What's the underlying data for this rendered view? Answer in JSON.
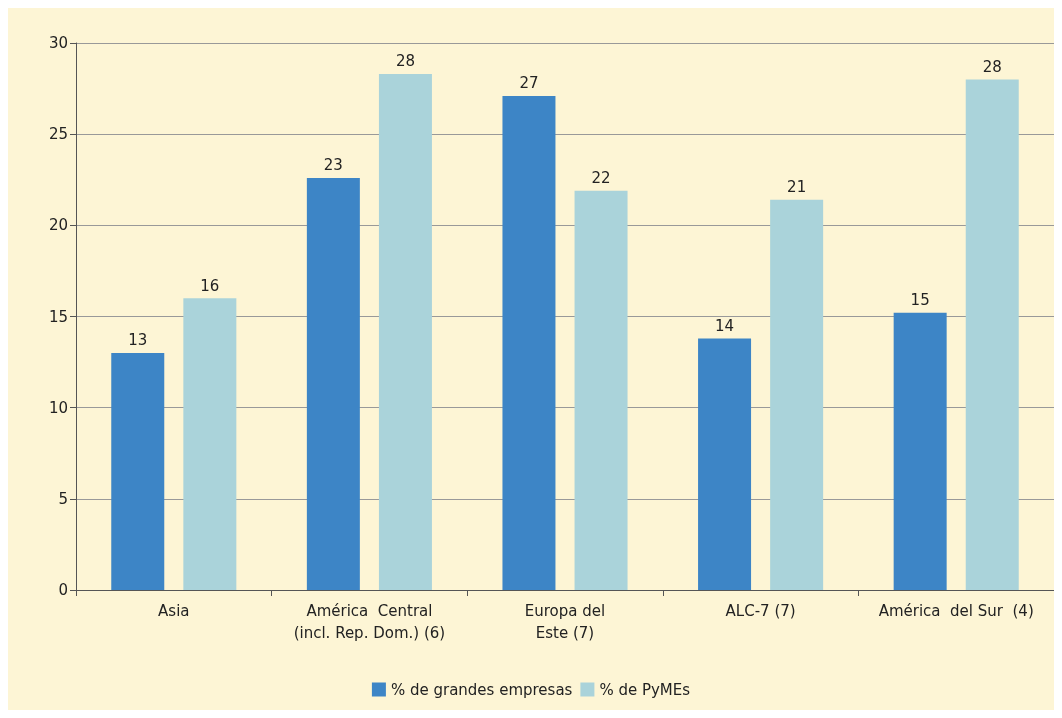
{
  "chart_data": {
    "type": "bar",
    "categories": [
      "Asia",
      "América  Central\n(incl. Rep. Dom.) (6)",
      "Europa del\nEste (7)",
      "ALC-7 (7)",
      "América  del Sur  (4)"
    ],
    "series": [
      {
        "name": "% de grandes empresas",
        "color": "#3d85c6",
        "values": [
          13.0,
          22.6,
          27.1,
          13.8,
          15.2
        ],
        "value_labels": [
          "13",
          "23",
          "27",
          "14",
          "15"
        ]
      },
      {
        "name": "% de PyMEs",
        "color": "#aad3da",
        "values": [
          16.0,
          28.3,
          21.9,
          21.4,
          28.0
        ],
        "value_labels": [
          "16",
          "28",
          "22",
          "21",
          "28"
        ]
      }
    ],
    "ylim": [
      0,
      30
    ],
    "yticks": [
      0,
      5,
      10,
      15,
      20,
      25,
      30
    ],
    "grid": "y",
    "legend": "bottom"
  }
}
